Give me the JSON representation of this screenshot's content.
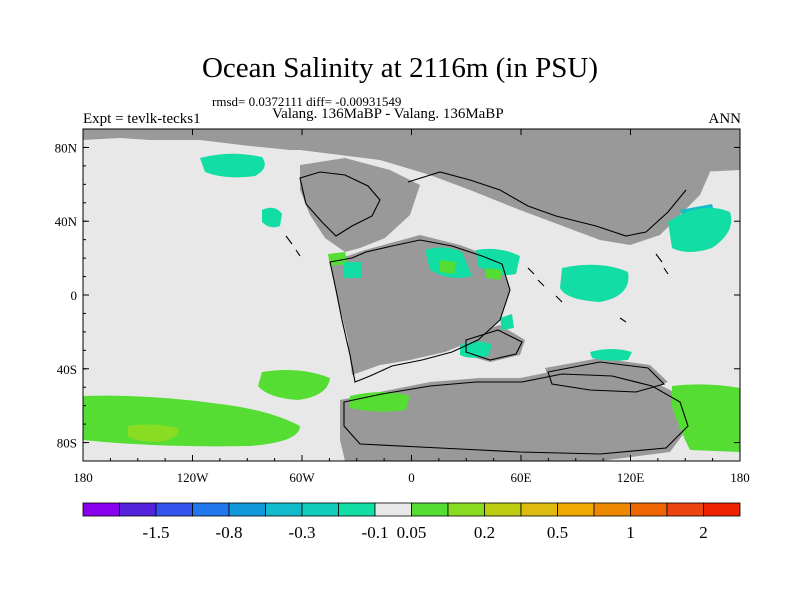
{
  "title": "Ocean Salinity at 2116m (in PSU)",
  "stats": "rmsd= 0.0372111 diff= -0.00931549",
  "expt": "Expt = tevlk-tecks1",
  "subtitle": "Valang. 136MaBP - Valang. 136MaBP",
  "season": "ANN",
  "colors": {
    "land": "#999999",
    "ocean_neutral": "#e8e8e8",
    "positive_small": "#55dd33",
    "negative_small": "#11dda5",
    "coastline": "#000000"
  },
  "chart_data": {
    "type": "heatmap",
    "projection": "cylindrical-equidistant",
    "lon_range": [
      -180,
      180
    ],
    "lat_range": [
      -90,
      90
    ],
    "x_ticks": [
      "180",
      "120W",
      "60W",
      "0",
      "60E",
      "120E",
      "180"
    ],
    "y_ticks": [
      "80N",
      "40N",
      "0",
      "40S",
      "80S"
    ],
    "colorbar": {
      "colors": [
        "#8800ee",
        "#5522dd",
        "#3355ee",
        "#2277ee",
        "#1199dd",
        "#11bbcc",
        "#11ccbb",
        "#11dda5",
        "#e8e8e8",
        "#55dd33",
        "#88dd22",
        "#bbcc11",
        "#ddbb11",
        "#eeaa00",
        "#ee8800",
        "#ee6600",
        "#ee4411",
        "#ee2200"
      ],
      "labels": [
        {
          "text": "-1.5",
          "boundary": 2
        },
        {
          "text": "-0.8",
          "boundary": 4
        },
        {
          "text": "-0.3",
          "boundary": 6
        },
        {
          "text": "-0.1",
          "boundary": 8
        },
        {
          "text": "0.05",
          "boundary": 9
        },
        {
          "text": "0.2",
          "boundary": 11
        },
        {
          "text": "0.5",
          "boundary": 13
        },
        {
          "text": "1",
          "boundary": 15
        },
        {
          "text": "2",
          "boundary": 17
        }
      ]
    }
  }
}
